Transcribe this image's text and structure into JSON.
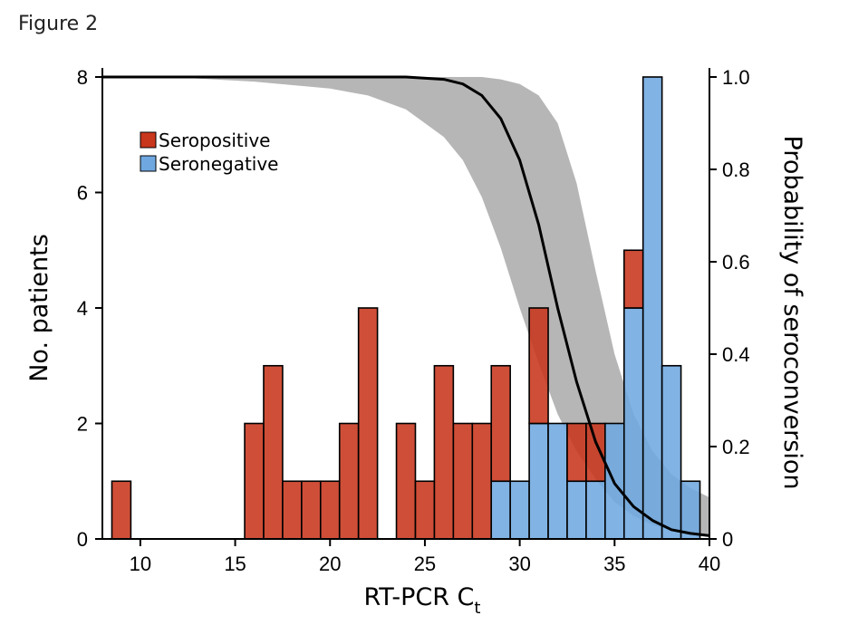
{
  "figure_label": "Figure 2",
  "colors": {
    "seropositive": "#c8361c",
    "seronegative": "#6fa8e0",
    "band": "#a9a9a9",
    "curve": "#000000"
  },
  "chart_data": {
    "type": "bar",
    "stacked": true,
    "title": "",
    "xlabel": "RT-PCR C",
    "xlabel_subscript": "t",
    "ylabel": "No. patients",
    "y2label": "Probability of seroconversion",
    "xlim": [
      8,
      40
    ],
    "ylim": [
      0,
      8
    ],
    "y2lim": [
      0,
      1
    ],
    "xticks": [
      10,
      15,
      20,
      25,
      30,
      35,
      40
    ],
    "yticks": [
      0,
      2,
      4,
      6,
      8
    ],
    "y2ticks": [
      0,
      0.2,
      0.4,
      0.6,
      0.8,
      1.0
    ],
    "y2tick_labels": [
      "0",
      "0.2",
      "0.4",
      "0.6",
      "0.8",
      "1.0"
    ],
    "bin_width": 1,
    "bin_starts": [
      8.5,
      15.5,
      16.5,
      17.5,
      18.5,
      19.5,
      20.5,
      21.5,
      23.5,
      24.5,
      25.5,
      26.5,
      27.5,
      28.5,
      29.5,
      30.5,
      31.5,
      32.5,
      33.5,
      34.5,
      35.5,
      36.5,
      37.5,
      38.5
    ],
    "series": [
      {
        "name": "Seropositive",
        "values": [
          1,
          2,
          3,
          1,
          1,
          1,
          2,
          4,
          2,
          1,
          3,
          2,
          2,
          2,
          0,
          2,
          0,
          1,
          1,
          0,
          1,
          0,
          0,
          0
        ]
      },
      {
        "name": "Seronegative",
        "values": [
          0,
          0,
          0,
          0,
          0,
          0,
          0,
          0,
          0,
          0,
          0,
          0,
          0,
          1,
          1,
          2,
          2,
          1,
          1,
          2,
          4,
          8,
          3,
          1
        ]
      }
    ],
    "legend": {
      "position": "top-left",
      "entries": [
        "Seropositive",
        "Seronegative"
      ]
    },
    "probability_curve": {
      "x": [
        8,
        12,
        16,
        20,
        22,
        24,
        26,
        27,
        28,
        29,
        30,
        31,
        32,
        33,
        34,
        35,
        36,
        37,
        38,
        39,
        40
      ],
      "y": [
        1.0,
        1.0,
        1.0,
        1.0,
        1.0,
        1.0,
        0.995,
        0.985,
        0.96,
        0.91,
        0.82,
        0.68,
        0.5,
        0.34,
        0.21,
        0.12,
        0.07,
        0.04,
        0.02,
        0.012,
        0.007
      ],
      "lower": [
        1.0,
        0.999,
        0.99,
        0.975,
        0.96,
        0.93,
        0.87,
        0.82,
        0.74,
        0.63,
        0.5,
        0.38,
        0.27,
        0.19,
        0.13,
        0.08,
        0.05,
        0.03,
        0.018,
        0.01,
        0.005
      ],
      "upper": [
        1.0,
        1.0,
        1.0,
        1.0,
        1.0,
        1.0,
        1.0,
        1.0,
        1.0,
        0.995,
        0.985,
        0.96,
        0.9,
        0.77,
        0.58,
        0.4,
        0.27,
        0.19,
        0.14,
        0.11,
        0.09
      ]
    }
  }
}
